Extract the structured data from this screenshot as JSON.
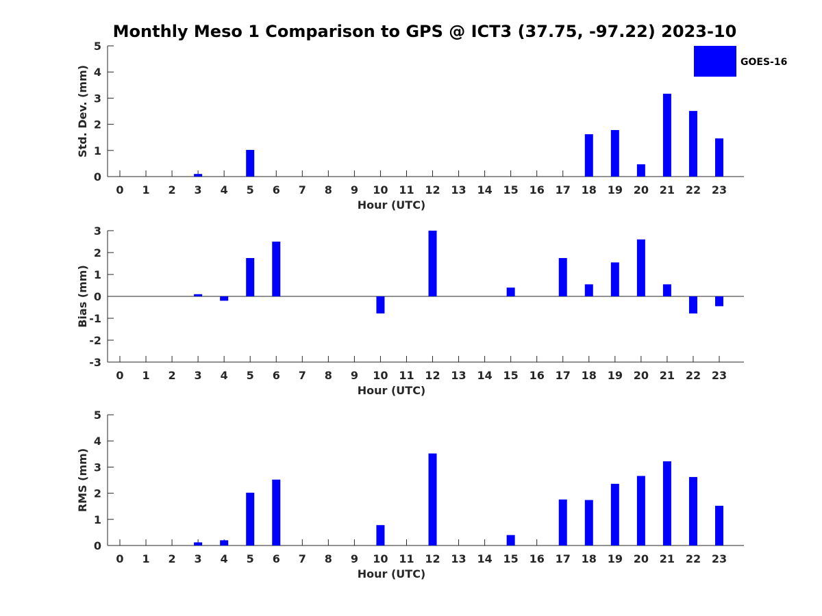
{
  "title": "Monthly Meso 1 Comparison to GPS @ ICT3 (37.75, -97.22) 2023-10",
  "legend": {
    "label": "GOES-16",
    "color": "#0000ff",
    "placement": "top-right"
  },
  "chart_data": [
    {
      "type": "bar",
      "ylabel": "Std. Dev. (mm)",
      "xlabel": "Hour (UTC)",
      "ylim": [
        0,
        5
      ],
      "yticks": [
        "0",
        "1",
        "2",
        "3",
        "4",
        "5"
      ],
      "categories": [
        "0",
        "1",
        "2",
        "3",
        "4",
        "5",
        "6",
        "7",
        "8",
        "9",
        "10",
        "11",
        "12",
        "13",
        "14",
        "15",
        "16",
        "17",
        "18",
        "19",
        "20",
        "21",
        "22",
        "23"
      ],
      "series": [
        {
          "name": "GOES-16",
          "color": "#0000ff",
          "values": [
            0,
            0,
            0,
            0.1,
            0,
            1.02,
            0,
            0,
            0,
            0,
            0,
            0,
            0,
            0,
            0,
            0,
            0,
            0,
            1.62,
            1.78,
            0.47,
            3.17,
            2.51,
            1.46
          ]
        }
      ],
      "grid": false
    },
    {
      "type": "bar",
      "ylabel": "Bias (mm)",
      "xlabel": "Hour (UTC)",
      "ylim": [
        -3,
        3
      ],
      "yticks": [
        "-3",
        "-2",
        "-1",
        "0",
        "1",
        "2",
        "3"
      ],
      "categories": [
        "0",
        "1",
        "2",
        "3",
        "4",
        "5",
        "6",
        "7",
        "8",
        "9",
        "10",
        "11",
        "12",
        "13",
        "14",
        "15",
        "16",
        "17",
        "18",
        "19",
        "20",
        "21",
        "22",
        "23"
      ],
      "series": [
        {
          "name": "GOES-16",
          "color": "#0000ff",
          "values": [
            0,
            0,
            0,
            0.1,
            -0.2,
            1.75,
            2.5,
            0,
            0,
            0,
            -0.78,
            0,
            3.0,
            0,
            0,
            0.4,
            0,
            1.75,
            0.55,
            1.55,
            2.6,
            0.55,
            -0.78,
            -0.45
          ]
        }
      ],
      "grid": false
    },
    {
      "type": "bar",
      "ylabel": "RMS (mm)",
      "xlabel": "Hour (UTC)",
      "ylim": [
        0,
        5
      ],
      "yticks": [
        "0",
        "1",
        "2",
        "3",
        "4",
        "5"
      ],
      "categories": [
        "0",
        "1",
        "2",
        "3",
        "4",
        "5",
        "6",
        "7",
        "8",
        "9",
        "10",
        "11",
        "12",
        "13",
        "14",
        "15",
        "16",
        "17",
        "18",
        "19",
        "20",
        "21",
        "22",
        "23"
      ],
      "series": [
        {
          "name": "GOES-16",
          "color": "#0000ff",
          "values": [
            0,
            0,
            0,
            0.12,
            0.2,
            2.02,
            2.52,
            0,
            0,
            0,
            0.78,
            0,
            3.52,
            0,
            0,
            0.4,
            0,
            1.76,
            1.74,
            2.36,
            2.66,
            3.22,
            2.62,
            1.52
          ]
        }
      ],
      "grid": false
    }
  ]
}
